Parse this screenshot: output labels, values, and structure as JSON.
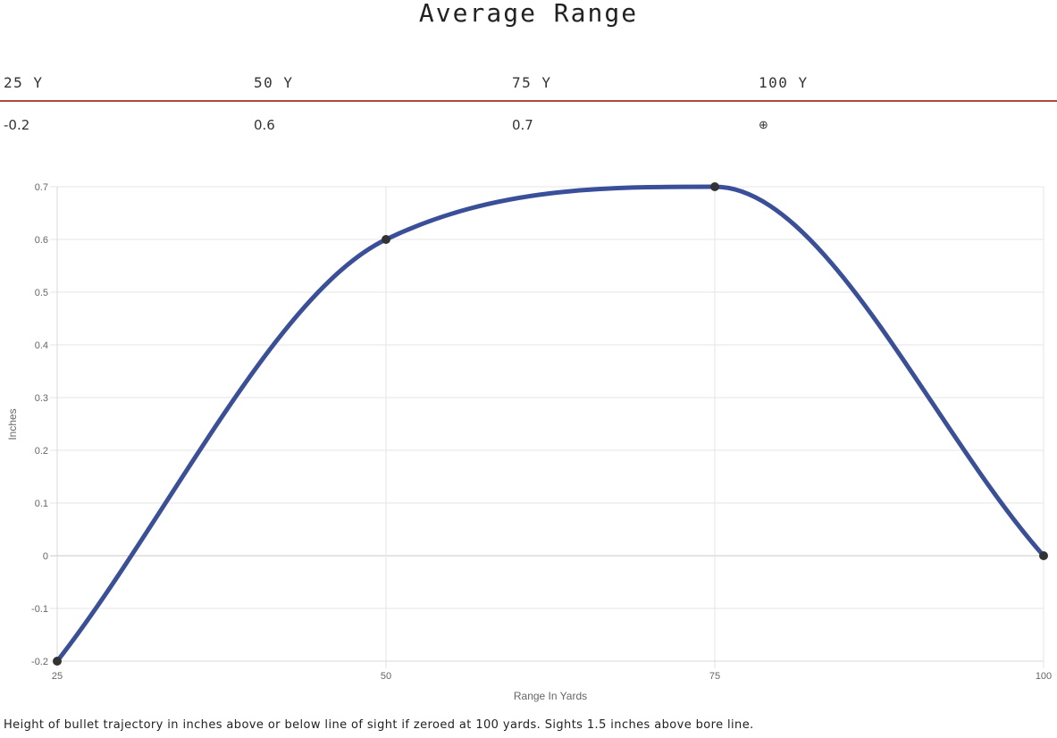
{
  "page": {
    "title": "Average Range",
    "footnote": "Height of bullet trajectory in inches above or below line of sight if zeroed at 100 yards. Sights 1.5 inches above bore line."
  },
  "range_table": {
    "headers": [
      "25 Y",
      "50 Y",
      "75 Y",
      "100 Y"
    ],
    "values": [
      "-0.2",
      "0.6",
      "0.7",
      "⊕"
    ],
    "divider_color": "#b0483e"
  },
  "chart_data": {
    "type": "line",
    "x": [
      25,
      50,
      75,
      100
    ],
    "series": [
      {
        "values": [
          -0.2,
          0.6,
          0.7,
          0
        ],
        "color": "#3a4f9a"
      }
    ],
    "xlabel": "Range In Yards",
    "ylabel": "Inches",
    "xlim": [
      25,
      100
    ],
    "ylim": [
      -0.2,
      0.7
    ],
    "x_ticks": [
      "25",
      "50",
      "75",
      "100"
    ],
    "y_ticks": [
      "0.7",
      "0.6",
      "0.5",
      "0.4",
      "0.3",
      "0.2",
      "0.1",
      "0",
      "-0.1",
      "-0.2"
    ],
    "grid": true,
    "legend": "none",
    "point_color": "#333333"
  }
}
